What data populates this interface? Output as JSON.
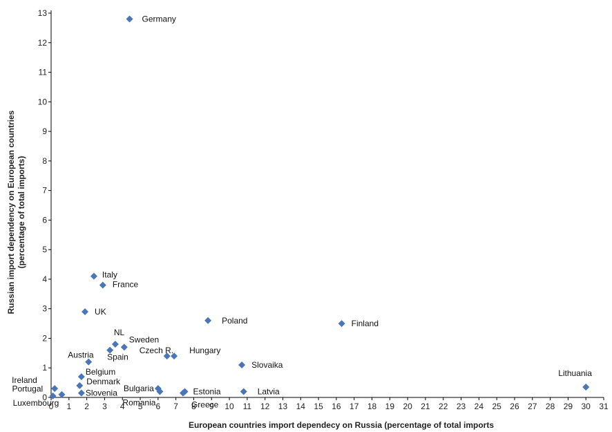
{
  "chart_data": {
    "type": "scatter",
    "title": "",
    "xlabel": "European countries import dependecy on Russia (percentage of total imports",
    "ylabel": "Russian import dependency on European countries\n(percentage of total imports)",
    "xlim": [
      0,
      31
    ],
    "ylim": [
      0,
      13
    ],
    "x_ticks": [
      0,
      1,
      2,
      3,
      4,
      5,
      6,
      7,
      8,
      9,
      10,
      11,
      12,
      13,
      14,
      15,
      16,
      17,
      18,
      19,
      20,
      21,
      22,
      23,
      24,
      25,
      26,
      27,
      28,
      29,
      30,
      31
    ],
    "y_ticks": [
      0,
      1,
      2,
      3,
      4,
      5,
      6,
      7,
      8,
      9,
      10,
      11,
      12,
      13
    ],
    "grid": false,
    "marker_color": "#4a76b8",
    "series": [
      {
        "points": [
          {
            "label": "Germany",
            "x": 4.4,
            "y": 12.8
          },
          {
            "label": "Italy",
            "x": 2.4,
            "y": 4.1
          },
          {
            "label": "France",
            "x": 2.9,
            "y": 3.8
          },
          {
            "label": "UK",
            "x": 1.9,
            "y": 2.9
          },
          {
            "label": "Poland",
            "x": 8.8,
            "y": 2.6
          },
          {
            "label": "Finland",
            "x": 16.3,
            "y": 2.5
          },
          {
            "label": "NL",
            "x": 3.6,
            "y": 1.8
          },
          {
            "label": "Sweden",
            "x": 4.1,
            "y": 1.7
          },
          {
            "label": "Spain",
            "x": 3.3,
            "y": 1.6
          },
          {
            "label": "Czech R.",
            "x": 6.5,
            "y": 1.4
          },
          {
            "label": "Hungary",
            "x": 6.9,
            "y": 1.4
          },
          {
            "label": "Austria",
            "x": 2.1,
            "y": 1.2
          },
          {
            "label": "Slovaika",
            "x": 10.7,
            "y": 1.1
          },
          {
            "label": "Belgium",
            "x": 1.7,
            "y": 0.7
          },
          {
            "label": "Denmark",
            "x": 1.6,
            "y": 0.4
          },
          {
            "label": "Ireland",
            "x": 0.2,
            "y": 0.3
          },
          {
            "label": "Portugal",
            "x": 0.6,
            "y": 0.1
          },
          {
            "label": "Luxembourg",
            "x": 0.1,
            "y": 0.05
          },
          {
            "label": "Slovenia",
            "x": 1.7,
            "y": 0.15
          },
          {
            "label": "Bulgaria",
            "x": 6.0,
            "y": 0.3
          },
          {
            "label": "Romania",
            "x": 6.1,
            "y": 0.2
          },
          {
            "label": "Estonia",
            "x": 7.5,
            "y": 0.2
          },
          {
            "label": "Greece",
            "x": 7.4,
            "y": 0.15
          },
          {
            "label": "Latvia",
            "x": 10.8,
            "y": 0.2
          },
          {
            "label": "Lithuania",
            "x": 30.0,
            "y": 0.35
          }
        ]
      }
    ]
  }
}
